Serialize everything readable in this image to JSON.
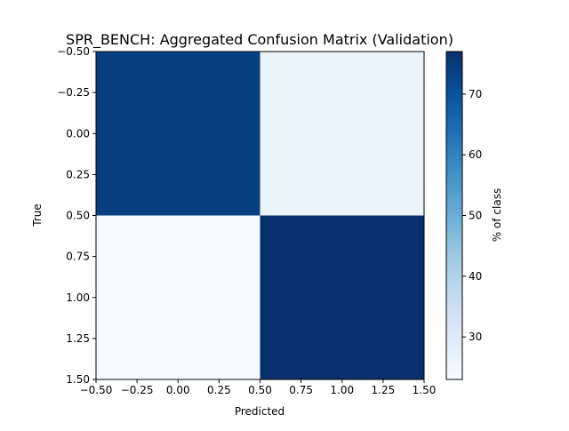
{
  "chart_data": {
    "type": "heatmap",
    "title": "SPR_BENCH: Aggregated Confusion Matrix (Validation)",
    "xlabel": "Predicted",
    "ylabel": "True",
    "colorbar_label": "% of class",
    "colormap": "Blues",
    "x_range": [
      -0.5,
      1.5
    ],
    "y_range": [
      -0.5,
      1.5
    ],
    "y_inverted": true,
    "x_ticks": [
      "−0.50",
      "−0.25",
      "0.00",
      "0.25",
      "0.50",
      "0.75",
      "1.00",
      "1.25",
      "1.50"
    ],
    "y_ticks": [
      "−0.50",
      "−0.25",
      "0.00",
      "0.25",
      "0.50",
      "0.75",
      "1.00",
      "1.25",
      "1.50"
    ],
    "matrix": [
      [
        74,
        26
      ],
      [
        23,
        77
      ]
    ],
    "color_range": [
      23,
      77
    ],
    "colorbar_ticks": [
      "30",
      "40",
      "50",
      "60",
      "70"
    ],
    "colorbar_tick_values": [
      30,
      40,
      50,
      60,
      70
    ],
    "grid": false
  }
}
